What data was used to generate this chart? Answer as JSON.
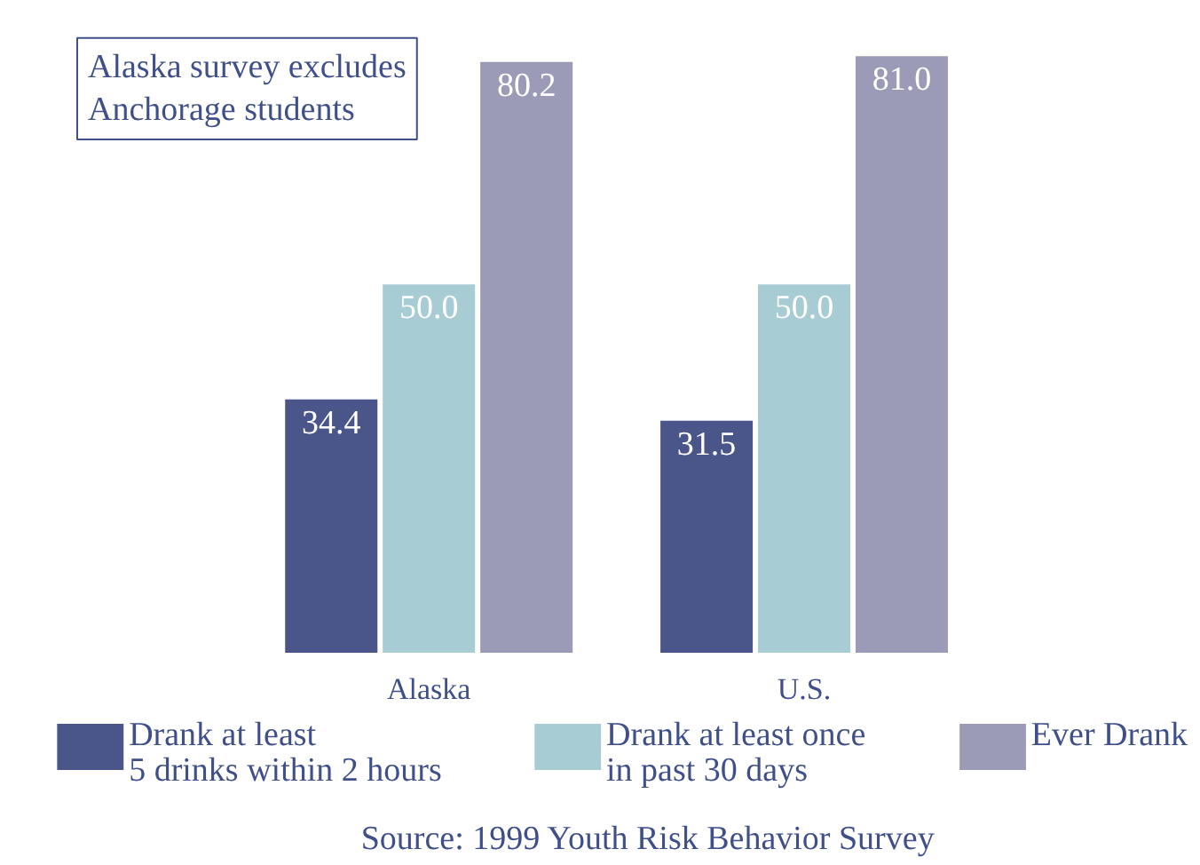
{
  "chart_data": {
    "type": "bar",
    "categories": [
      "Alaska",
      "U.S."
    ],
    "series": [
      {
        "name": "Drank at least\n5 drinks within 2 hours",
        "color": "#4a568a",
        "values": [
          34.4,
          31.5
        ],
        "value_labels": [
          "34.4",
          "31.5"
        ]
      },
      {
        "name": "Drank at least once\nin past 30 days",
        "color": "#a8ccd4",
        "values": [
          50.0,
          50.0
        ],
        "value_labels": [
          "50.0",
          "50.0"
        ]
      },
      {
        "name": "Ever Drank",
        "color": "#9b9bb8",
        "values": [
          80.2,
          81.0
        ],
        "value_labels": [
          "80.2",
          "81.0"
        ]
      }
    ],
    "legend": "bottom",
    "tick_labels": "x",
    "annotations": [
      "Alaska survey excludes\nAnchorage students",
      "Source: 1999 Youth Risk Behavior Survey"
    ]
  }
}
